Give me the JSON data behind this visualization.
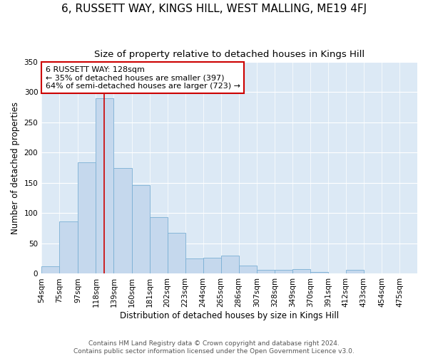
{
  "title": "6, RUSSETT WAY, KINGS HILL, WEST MALLING, ME19 4FJ",
  "subtitle": "Size of property relative to detached houses in Kings Hill",
  "xlabel": "Distribution of detached houses by size in Kings Hill",
  "ylabel": "Number of detached properties",
  "bar_color": "#c5d8ed",
  "bar_edge_color": "#7aafd4",
  "background_color": "#dce9f5",
  "annotation_box_text": "6 RUSSETT WAY: 128sqm\n← 35% of detached houses are smaller (397)\n64% of semi-detached houses are larger (723) →",
  "annotation_box_color": "white",
  "annotation_box_edge_color": "#cc0000",
  "vline_x": 128,
  "vline_color": "#cc0000",
  "bins": [
    54,
    75,
    97,
    118,
    139,
    160,
    181,
    202,
    223,
    244,
    265,
    286,
    307,
    328,
    349,
    370,
    391,
    412,
    433,
    454,
    475
  ],
  "counts": [
    12,
    87,
    184,
    290,
    175,
    147,
    93,
    68,
    25,
    27,
    30,
    13,
    6,
    6,
    8,
    3,
    0,
    6,
    0,
    0
  ],
  "ylim": [
    0,
    350
  ],
  "yticks": [
    0,
    50,
    100,
    150,
    200,
    250,
    300,
    350
  ],
  "footer_text": "Contains HM Land Registry data © Crown copyright and database right 2024.\nContains public sector information licensed under the Open Government Licence v3.0.",
  "grid_color": "#ffffff",
  "title_fontsize": 11,
  "subtitle_fontsize": 9.5,
  "axis_label_fontsize": 8.5,
  "tick_fontsize": 7.5,
  "annotation_fontsize": 8,
  "footer_fontsize": 6.5
}
